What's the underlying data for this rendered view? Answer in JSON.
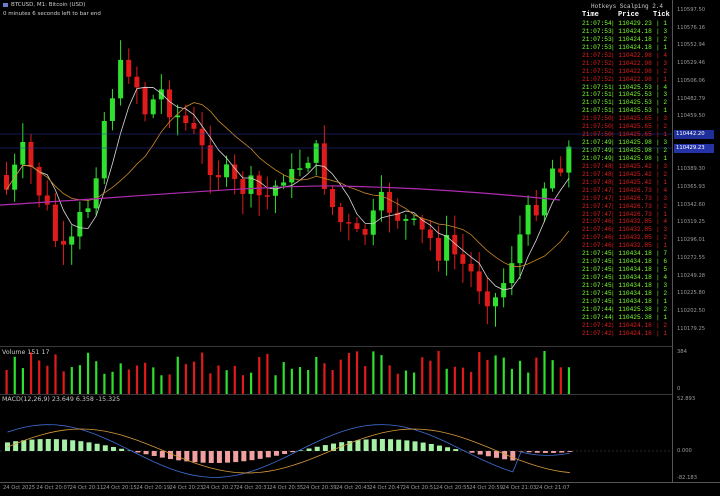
{
  "chart_info": {
    "symbol_line": "BTCUSD, M1: Bitcoin (USD)",
    "countdown": "0 minutes 6 seconds left to bar end"
  },
  "tick_panel": {
    "title": "Hotkeys Scalping 2.4",
    "headers": {
      "time": "Time",
      "price": "Price",
      "tick": "Tick"
    },
    "rows": [
      {
        "time": "21:07:54",
        "price": "110429.23",
        "tick": "1",
        "dir": "up"
      },
      {
        "time": "21:07:53",
        "price": "110424.18",
        "tick": "3",
        "dir": "up"
      },
      {
        "time": "21:07:53",
        "price": "110424.18",
        "tick": "2",
        "dir": "up"
      },
      {
        "time": "21:07:53",
        "price": "110424.18",
        "tick": "1",
        "dir": "up"
      },
      {
        "time": "21:07:52",
        "price": "110422.98",
        "tick": "4",
        "dir": "down"
      },
      {
        "time": "21:07:52",
        "price": "110422.98",
        "tick": "3",
        "dir": "down"
      },
      {
        "time": "21:07:52",
        "price": "110422.98",
        "tick": "2",
        "dir": "down"
      },
      {
        "time": "21:07:52",
        "price": "110422.98",
        "tick": "1",
        "dir": "down"
      },
      {
        "time": "21:07:51",
        "price": "110425.53",
        "tick": "4",
        "dir": "up"
      },
      {
        "time": "21:07:51",
        "price": "110425.53",
        "tick": "3",
        "dir": "up"
      },
      {
        "time": "21:07:51",
        "price": "110425.53",
        "tick": "2",
        "dir": "up"
      },
      {
        "time": "21:07:51",
        "price": "110425.53",
        "tick": "1",
        "dir": "up"
      },
      {
        "time": "21:07:50",
        "price": "110425.65",
        "tick": "3",
        "dir": "down"
      },
      {
        "time": "21:07:50",
        "price": "110425.65",
        "tick": "2",
        "dir": "down"
      },
      {
        "time": "21:07:50",
        "price": "110425.65",
        "tick": "1",
        "dir": "down"
      },
      {
        "time": "21:07:49",
        "price": "110425.98",
        "tick": "3",
        "dir": "up"
      },
      {
        "time": "21:07:49",
        "price": "110425.98",
        "tick": "2",
        "dir": "up"
      },
      {
        "time": "21:07:49",
        "price": "110425.98",
        "tick": "1",
        "dir": "up"
      },
      {
        "time": "21:07:48",
        "price": "110425.42",
        "tick": "3",
        "dir": "down"
      },
      {
        "time": "21:07:48",
        "price": "110425.42",
        "tick": "2",
        "dir": "down"
      },
      {
        "time": "21:07:48",
        "price": "110425.42",
        "tick": "1",
        "dir": "down"
      },
      {
        "time": "21:07:47",
        "price": "110426.73",
        "tick": "4",
        "dir": "down"
      },
      {
        "time": "21:07:47",
        "price": "110426.73",
        "tick": "3",
        "dir": "down"
      },
      {
        "time": "21:07:47",
        "price": "110426.73",
        "tick": "2",
        "dir": "down"
      },
      {
        "time": "21:07:47",
        "price": "110426.73",
        "tick": "1",
        "dir": "down"
      },
      {
        "time": "21:07:46",
        "price": "110432.85",
        "tick": "4",
        "dir": "down"
      },
      {
        "time": "21:07:46",
        "price": "110432.85",
        "tick": "3",
        "dir": "down"
      },
      {
        "time": "21:07:46",
        "price": "110432.85",
        "tick": "2",
        "dir": "down"
      },
      {
        "time": "21:07:46",
        "price": "110432.85",
        "tick": "1",
        "dir": "down"
      },
      {
        "time": "21:07:45",
        "price": "110434.18",
        "tick": "7",
        "dir": "up"
      },
      {
        "time": "21:07:45",
        "price": "110434.18",
        "tick": "6",
        "dir": "up"
      },
      {
        "time": "21:07:45",
        "price": "110434.18",
        "tick": "5",
        "dir": "up"
      },
      {
        "time": "21:07:45",
        "price": "110434.18",
        "tick": "4",
        "dir": "up"
      },
      {
        "time": "21:07:45",
        "price": "110434.18",
        "tick": "3",
        "dir": "up"
      },
      {
        "time": "21:07:45",
        "price": "110434.18",
        "tick": "2",
        "dir": "up"
      },
      {
        "time": "21:07:45",
        "price": "110434.18",
        "tick": "1",
        "dir": "up"
      },
      {
        "time": "21:07:44",
        "price": "110425.38",
        "tick": "2",
        "dir": "up"
      },
      {
        "time": "21:07:44",
        "price": "110425.38",
        "tick": "1",
        "dir": "up"
      },
      {
        "time": "21:07:42",
        "price": "110424.16",
        "tick": "2",
        "dir": "down"
      },
      {
        "time": "21:07:42",
        "price": "110424.16",
        "tick": "1",
        "dir": "down"
      }
    ]
  },
  "price_axis": {
    "labels": [
      "110597.50",
      "110576.16",
      "110552.94",
      "110529.46",
      "110506.06",
      "110482.79",
      "110459.50",
      "110436.28",
      "110412.83",
      "110389.30",
      "110365.93",
      "110342.60",
      "110319.25",
      "110296.01",
      "110272.55",
      "110249.28",
      "110225.80",
      "110202.50",
      "110179.25"
    ],
    "current_price_boxes": [
      "110442.20",
      "110429.23"
    ]
  },
  "volume_panel": {
    "label": "Volume 151 17",
    "axis_labels": [
      "384",
      "0"
    ]
  },
  "macd_panel": {
    "label": "MACD(12,26,9) 23.649 6.358 -15.325",
    "axis_labels": [
      "52.893",
      "0.000",
      "-82.183"
    ]
  },
  "time_axis": {
    "labels": [
      "24 Oct 2025",
      "24 Oct 20:07",
      "24 Oct 20:11",
      "24 Oct 20:15",
      "24 Oct 20:19",
      "24 Oct 20:23",
      "24 Oct 20:27",
      "24 Oct 20:31",
      "24 Oct 20:35",
      "24 Oct 20:39",
      "24 Oct 20:43",
      "24 Oct 20:47",
      "24 Oct 20:51",
      "24 Oct 20:55",
      "24 Oct 20:59",
      "24 Oct 21:03",
      "24 Oct 21:07"
    ]
  },
  "colors": {
    "bull": "#2fe02f",
    "bear": "#e01b1b",
    "ma_fast": "#d8d8d8",
    "ma_slow": "#c8882a",
    "ma_long": "#b02cb0",
    "macd_line": "#3f6fd8",
    "signal_line": "#d89a3a",
    "hist_pos": "#a6f0a6",
    "hist_neg": "#f0a0a0",
    "tick_up": "#7dff2f",
    "tick_down": "#e02020"
  }
}
